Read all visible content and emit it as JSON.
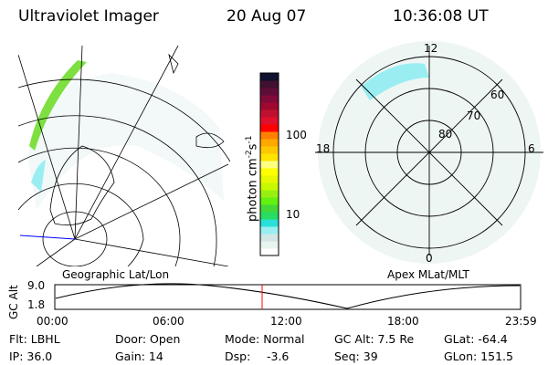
{
  "header": {
    "instrument": "Ultraviolet Imager",
    "date": "20 Aug 07",
    "time": "10:36:08 UT"
  },
  "colorbar": {
    "label": "photon cm",
    "exp1": "-2",
    "mid": "s",
    "exp2": "-1",
    "ticks": [
      "100",
      "10"
    ],
    "colors": [
      "#ffffff",
      "#e8f4ee",
      "#d2e6e6",
      "#9aeef2",
      "#2ae0d8",
      "#28dc64",
      "#44d838",
      "#64f010",
      "#98f010",
      "#c8f800",
      "#e8f800",
      "#ffff00",
      "#ffff80",
      "#ffe400",
      "#ffc800",
      "#ffa800",
      "#ff8000",
      "#ff0000",
      "#e0102c",
      "#c01030",
      "#a00830",
      "#800a38",
      "#600c38",
      "#401030",
      "#101030"
    ]
  },
  "polar": {
    "mlt_labels": [
      "12",
      "18",
      "6",
      "0"
    ],
    "mlat_labels": [
      "60",
      "70",
      "80"
    ]
  },
  "timeline": {
    "left_label": "Geographic Lat/Lon",
    "right_label": "Apex MLat/MLT",
    "ylabel": "GC Alt",
    "yticks": [
      "9.0",
      "1.8"
    ],
    "xticks": [
      "00:00",
      "06:00",
      "12:00",
      "18:00",
      "23:59"
    ],
    "current_marker_color": "#ff0000"
  },
  "info": {
    "flt": "Flt: LBHL",
    "ip": "IP: 36.0",
    "door": "Door: Open",
    "gain": "Gain: 14",
    "mode": "Mode: Normal",
    "dsp_label": "Dsp:",
    "dsp_value": "-3.6",
    "gcalt": "GC Alt: 7.5 Re",
    "seq": "Seq: 39",
    "glat": "GLat: -64.4",
    "glon": "GLon: 151.5"
  }
}
